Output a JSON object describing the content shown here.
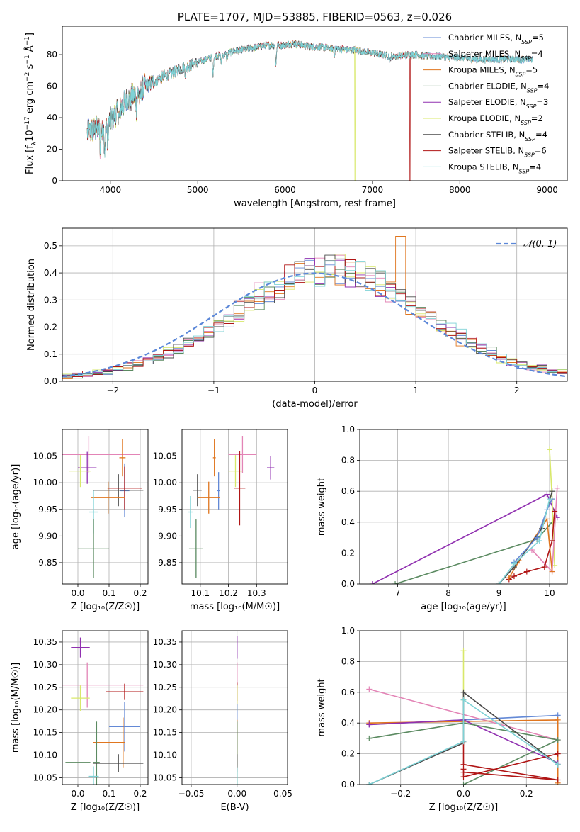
{
  "colors": {
    "Chabrier MILES": "#6389d6",
    "Salpeter MILES": "#e384b6",
    "Kroupa MILES": "#e0761f",
    "Chabrier ELODIE": "#5b8a61",
    "Salpeter ELODIE": "#9030b0",
    "Kroupa ELODIE": "#d8e86a",
    "Chabrier STELIB": "#4a4a4a",
    "Salpeter STELIB": "#b01515",
    "Kroupa STELIB": "#7ed2d6"
  },
  "chart_data": [
    {
      "type": "line",
      "title": "PLATE=1707, MJD=53885, FIBERID=0563, z=0.026",
      "xlabel": "wavelength [Angstrom, rest frame]",
      "ylabel": "Flux [f_λ 10⁻¹⁷ erg cm⁻² s⁻¹ Å⁻¹]",
      "xlim": [
        3450,
        9230
      ],
      "ylim": [
        0,
        98
      ],
      "xticks": [
        4000,
        5000,
        6000,
        7000,
        8000,
        9000
      ],
      "yticks": [
        0,
        20,
        40,
        60,
        80
      ],
      "legend_placement": "top-right",
      "legend": [
        {
          "model": "Chabrier MILES",
          "name": "Chabrier MILES, N",
          "sub": "SSP",
          "n": "=5"
        },
        {
          "model": "Salpeter MILES",
          "name": "Salpeter MILES, N",
          "sub": "SSP",
          "n": "=4"
        },
        {
          "model": "Kroupa MILES",
          "name": "Kroupa MILES, N",
          "sub": "SSP",
          "n": "=5"
        },
        {
          "model": "Chabrier ELODIE",
          "name": "Chabrier ELODIE, N",
          "sub": "SSP",
          "n": "=4"
        },
        {
          "model": "Salpeter ELODIE",
          "name": "Salpeter ELODIE, N",
          "sub": "SSP",
          "n": "=3"
        },
        {
          "model": "Kroupa ELODIE",
          "name": "Kroupa ELODIE, N",
          "sub": "SSP",
          "n": "=2"
        },
        {
          "model": "Chabrier STELIB",
          "name": "Chabrier STELIB, N",
          "sub": "SSP",
          "n": "=4"
        },
        {
          "model": "Salpeter STELIB",
          "name": "Salpeter STELIB, N",
          "sub": "SSP",
          "n": "=6"
        },
        {
          "model": "Kroupa STELIB",
          "name": "Kroupa STELIB, N",
          "sub": "SSP",
          "n": "=4"
        }
      ],
      "continuum": {
        "x": [
          3730,
          3800,
          3900,
          4000,
          4100,
          4200,
          4300,
          4400,
          4500,
          4600,
          4700,
          4800,
          4900,
          5000,
          5100,
          5200,
          5300,
          5400,
          5500,
          5600,
          5700,
          5800,
          5900,
          6000,
          6100,
          6200,
          6300,
          6400,
          6500,
          6600,
          6700,
          6800,
          6900,
          7000,
          7100,
          7200,
          7300,
          7400,
          7500,
          7600,
          7700,
          7800,
          7900,
          8000,
          8200,
          8400,
          8600,
          8800
        ],
        "y": [
          30,
          32,
          34,
          38,
          45,
          52,
          55,
          60,
          63,
          66,
          68,
          71,
          73,
          75,
          77,
          79,
          80,
          82,
          83,
          84,
          85,
          86,
          86,
          86,
          87,
          86,
          85,
          85,
          84,
          84,
          83,
          83,
          82,
          81,
          80,
          79,
          79,
          80,
          80,
          79,
          79,
          79,
          78,
          78,
          77,
          77,
          77,
          77
        ]
      },
      "drops": [
        {
          "model": "Kroupa ELODIE",
          "x": 6800
        },
        {
          "model": "Salpeter STELIB",
          "x": 7430
        }
      ]
    },
    {
      "type": "histogram",
      "xlabel": "(data-model)/error",
      "ylabel": "Normed distribution",
      "xlim": [
        -2.5,
        2.5
      ],
      "ylim": [
        0,
        0.565
      ],
      "xticks": [
        -2,
        -1,
        0,
        1,
        2
      ],
      "yticks": [
        0.0,
        0.1,
        0.2,
        0.3,
        0.4,
        0.5
      ],
      "legend": {
        "name": "𝒩(0, 1)",
        "placement": "top-right"
      },
      "bin_edges": [
        -2.5,
        2.5,
        50
      ],
      "envelope": [
        0.02,
        0.023,
        0.027,
        0.032,
        0.037,
        0.045,
        0.053,
        0.063,
        0.074,
        0.088,
        0.103,
        0.12,
        0.14,
        0.162,
        0.186,
        0.21,
        0.237,
        0.262,
        0.29,
        0.315,
        0.338,
        0.36,
        0.378,
        0.392,
        0.402,
        0.408,
        0.41,
        0.408,
        0.402,
        0.392,
        0.378,
        0.36,
        0.338,
        0.315,
        0.29,
        0.262,
        0.237,
        0.21,
        0.186,
        0.162,
        0.14,
        0.12,
        0.103,
        0.088,
        0.074,
        0.063,
        0.053,
        0.045,
        0.037,
        0.032
      ]
    },
    {
      "type": "errorbar",
      "xlabel": "Z [log₁₀(Z/Z☉)]",
      "ylabel": "age  [log₁₀(age/yr)]",
      "xlim": [
        -0.05,
        0.225
      ],
      "ylim": [
        9.81,
        10.1
      ],
      "xticks": [
        0.0,
        0.1,
        0.2
      ],
      "yticks": [
        9.85,
        9.9,
        9.95,
        10.0,
        10.05
      ],
      "points": [
        {
          "model": "Salpeter MILES",
          "x": 0.035,
          "y": 10.053,
          "xerr": 0.165,
          "yerr": 0.035
        },
        {
          "model": "Salpeter ELODIE",
          "x": 0.03,
          "y": 10.028,
          "xerr": 0.03,
          "yerr": 0.03
        },
        {
          "model": "Kroupa ELODIE",
          "x": 0.008,
          "y": 10.022,
          "xerr": 0.035,
          "yerr": 0.03
        },
        {
          "model": "Kroupa MILES",
          "x": 0.143,
          "y": 10.047,
          "xerr": 0.01,
          "yerr": 0.035
        },
        {
          "model": "Chabrier MILES",
          "x": 0.15,
          "y": 9.985,
          "xerr": 0.015,
          "yerr": 0.05
        },
        {
          "model": "Chabrier STELIB",
          "x": 0.13,
          "y": 9.986,
          "xerr": 0.08,
          "yerr": 0.03
        },
        {
          "model": "Salpeter STELIB",
          "x": 0.15,
          "y": 9.99,
          "xerr": 0.055,
          "yerr": 0.04
        },
        {
          "model": "Kroupa MILES",
          "x": 0.097,
          "y": 9.972,
          "xerr": 0.055,
          "yerr": 0.03
        },
        {
          "model": "Kroupa STELIB",
          "x": 0.05,
          "y": 9.945,
          "xerr": 0.015,
          "yerr": 0.04
        },
        {
          "model": "Chabrier ELODIE",
          "x": 0.05,
          "y": 9.876,
          "xerr": 0.05,
          "yerr": 0.055
        }
      ]
    },
    {
      "type": "errorbar",
      "xlabel": "mass [log₁₀(M/M☉)]",
      "xlim": [
        10.035,
        10.41
      ],
      "ylim": [
        9.81,
        10.1
      ],
      "xticks": [
        10.1,
        10.2,
        10.3
      ],
      "yticks": [
        9.85,
        9.9,
        9.95,
        10.0,
        10.05
      ],
      "points": [
        {
          "model": "Salpeter MILES",
          "x": 10.25,
          "y": 10.053,
          "xerr": 0.05,
          "yerr": 0.035
        },
        {
          "model": "Salpeter ELODIE",
          "x": 10.35,
          "y": 10.028,
          "xerr": 0.013,
          "yerr": 0.022
        },
        {
          "model": "Kroupa ELODIE",
          "x": 10.225,
          "y": 10.022,
          "xerr": 0.025,
          "yerr": 0.03
        },
        {
          "model": "Kroupa MILES",
          "x": 10.15,
          "y": 10.047,
          "xerr": 0.005,
          "yerr": 0.035
        },
        {
          "model": "Chabrier MILES",
          "x": 10.165,
          "y": 9.985,
          "xerr": 0.005,
          "yerr": 0.035
        },
        {
          "model": "Salpeter STELIB",
          "x": 10.24,
          "y": 9.99,
          "xerr": 0.02,
          "yerr": 0.07
        },
        {
          "model": "Chabrier STELIB",
          "x": 10.09,
          "y": 9.986,
          "xerr": 0.015,
          "yerr": 0.03
        },
        {
          "model": "Kroupa MILES",
          "x": 10.13,
          "y": 9.972,
          "xerr": 0.04,
          "yerr": 0.03
        },
        {
          "model": "Kroupa STELIB",
          "x": 10.065,
          "y": 9.945,
          "xerr": 0.01,
          "yerr": 0.03
        },
        {
          "model": "Chabrier ELODIE",
          "x": 10.085,
          "y": 9.876,
          "xerr": 0.025,
          "yerr": 0.055
        }
      ]
    },
    {
      "type": "line",
      "xlabel": "age  [log₁₀(age/yr)]",
      "ylabel": "mass weight",
      "xlim": [
        6.25,
        10.35
      ],
      "ylim": [
        0,
        1.0
      ],
      "xticks": [
        7,
        8,
        9,
        10
      ],
      "yticks": [
        0.0,
        0.2,
        0.4,
        0.6,
        0.8,
        1.0
      ],
      "series": [
        {
          "model": "Salpeter ELODIE",
          "x": [
            6.5,
            9.95,
            10.15
          ],
          "y": [
            0.0,
            0.58,
            0.43
          ]
        },
        {
          "model": "Chabrier ELODIE",
          "x": [
            6.95,
            9.75,
            10.05
          ],
          "y": [
            0.0,
            0.29,
            0.4
          ]
        },
        {
          "model": "Kroupa ELODIE",
          "x": [
            10.0,
            10.05,
            10.1
          ],
          "y": [
            0.87,
            0.55,
            0.12
          ]
        },
        {
          "model": "Salpeter MILES",
          "x": [
            9.65,
            10.05,
            10.15
          ],
          "y": [
            0.22,
            0.08,
            0.62
          ]
        },
        {
          "model": "Salpeter STELIB",
          "x": [
            9.2,
            9.3,
            9.55,
            9.9,
            10.05,
            10.1
          ],
          "y": [
            0.03,
            0.05,
            0.08,
            0.11,
            0.28,
            0.47
          ]
        },
        {
          "model": "Kroupa MILES",
          "x": [
            9.2,
            9.4,
            9.95,
            10.05
          ],
          "y": [
            0.04,
            0.15,
            0.42,
            0.08
          ]
        },
        {
          "model": "Chabrier STELIB",
          "x": [
            9.0,
            9.3,
            9.85,
            10.05
          ],
          "y": [
            0.0,
            0.11,
            0.36,
            0.6
          ]
        },
        {
          "model": "Chabrier MILES",
          "x": [
            9.3,
            9.75,
            9.95,
            10.05
          ],
          "y": [
            0.14,
            0.3,
            0.48,
            0.55
          ]
        },
        {
          "model": "Kroupa STELIB",
          "x": [
            9.0,
            9.3,
            9.8,
            10.0
          ],
          "y": [
            0.0,
            0.13,
            0.28,
            0.55
          ]
        }
      ]
    },
    {
      "type": "errorbar",
      "xlabel": "Z [log₁₀(Z/Z☉)]",
      "ylabel": "mass [log₁₀(M/M☉)]",
      "xlim": [
        -0.05,
        0.225
      ],
      "ylim": [
        10.035,
        10.375
      ],
      "xticks": [
        0.0,
        0.1,
        0.2
      ],
      "yticks": [
        10.05,
        10.1,
        10.15,
        10.2,
        10.25,
        10.3,
        10.35
      ],
      "points": [
        {
          "model": "Salpeter ELODIE",
          "x": 0.008,
          "y": 10.338,
          "xerr": 0.03,
          "yerr": 0.022
        },
        {
          "model": "Salpeter MILES",
          "x": 0.03,
          "y": 10.255,
          "xerr": 0.18,
          "yerr": 0.05
        },
        {
          "model": "Salpeter STELIB",
          "x": 0.15,
          "y": 10.24,
          "xerr": 0.06,
          "yerr": 0.018
        },
        {
          "model": "Kroupa ELODIE",
          "x": 0.008,
          "y": 10.226,
          "xerr": 0.03,
          "yerr": 0.028
        },
        {
          "model": "Chabrier MILES",
          "x": 0.15,
          "y": 10.163,
          "xerr": 0.05,
          "yerr": 0.055
        },
        {
          "model": "Kroupa MILES",
          "x": 0.1,
          "y": 10.128,
          "xerr": 0.05,
          "yerr": 0.0
        },
        {
          "model": "Kroupa MILES",
          "x": 0.145,
          "y": 10.128,
          "xerr": 0.0,
          "yerr": 0.055
        },
        {
          "model": "Chabrier ELODIE",
          "x": 0.06,
          "y": 10.084,
          "xerr": 0.01,
          "yerr": 0.09
        },
        {
          "model": "Chabrier STELIB",
          "x": 0.13,
          "y": 10.082,
          "xerr": 0.08,
          "yerr": 0.02
        },
        {
          "model": "Chabrier ELODIE",
          "x": 0.0,
          "y": 10.084,
          "xerr": 0.04,
          "yerr": 0.0
        },
        {
          "model": "Kroupa STELIB",
          "x": 0.05,
          "y": 10.053,
          "xerr": 0.017,
          "yerr": 0.022
        }
      ]
    },
    {
      "type": "errorbar",
      "xlabel": "E(B-V)",
      "xlim": [
        -0.06,
        0.055
      ],
      "ylim": [
        10.035,
        10.375
      ],
      "xticks": [
        -0.05,
        0.0,
        0.05
      ],
      "xticklabels": [
        "−0.05",
        "0.00",
        "0.05"
      ],
      "yticks": [
        10.05,
        10.1,
        10.15,
        10.2,
        10.25,
        10.3,
        10.35
      ],
      "points": [
        {
          "model": "Salpeter ELODIE",
          "x": 0.0,
          "y": 10.338,
          "xerr": 0.0,
          "yerr": 0.025
        },
        {
          "model": "Salpeter MILES",
          "x": 0.0,
          "y": 10.255,
          "xerr": 0.0,
          "yerr": 0.05
        },
        {
          "model": "Salpeter STELIB",
          "x": 0.0,
          "y": 10.24,
          "xerr": 0.0,
          "yerr": 0.02
        },
        {
          "model": "Kroupa ELODIE",
          "x": 0.0,
          "y": 10.226,
          "xerr": 0.0,
          "yerr": 0.028
        },
        {
          "model": "Chabrier MILES",
          "x": 0.0,
          "y": 10.163,
          "xerr": 0.0,
          "yerr": 0.05
        },
        {
          "model": "Kroupa MILES",
          "x": 0.0,
          "y": 10.128,
          "xerr": 0.0,
          "yerr": 0.05
        },
        {
          "model": "Chabrier ELODIE",
          "x": 0.0,
          "y": 10.084,
          "xerr": 0.0,
          "yerr": 0.09
        },
        {
          "model": "Chabrier STELIB",
          "x": 0.0,
          "y": 10.082,
          "xerr": 0.0,
          "yerr": 0.02
        },
        {
          "model": "Kroupa STELIB",
          "x": 0.0,
          "y": 10.053,
          "xerr": 0.0,
          "yerr": 0.02
        }
      ]
    },
    {
      "type": "line",
      "xlabel": "Z [log₁₀(Z/Z☉)]",
      "ylabel": "mass weight",
      "xlim": [
        -0.33,
        0.33
      ],
      "ylim": [
        0,
        1.0
      ],
      "xticks": [
        -0.2,
        0.0,
        0.2
      ],
      "xticklabels": [
        "−0.2",
        "0.0",
        "0.2"
      ],
      "yticks": [
        0.0,
        0.2,
        0.4,
        0.6,
        0.8,
        1.0
      ],
      "series": [
        {
          "model": "Salpeter MILES",
          "x": [
            -0.3,
            0.3
          ],
          "y": [
            0.62,
            0.29
          ]
        },
        {
          "model": "Chabrier MILES",
          "x": [
            -0.3,
            0.3
          ],
          "y": [
            0.39,
            0.45
          ]
        },
        {
          "model": "Kroupa MILES",
          "x": [
            -0.3,
            0.3,
            0.3
          ],
          "y": [
            0.4,
            0.42,
            0.01
          ]
        },
        {
          "model": "Salpeter ELODIE",
          "x": [
            -0.3,
            0.0,
            0.3
          ],
          "y": [
            0.39,
            0.42,
            0.14
          ]
        },
        {
          "model": "Chabrier ELODIE",
          "x": [
            -0.3,
            0.0,
            0.3,
            0.0
          ],
          "y": [
            0.3,
            0.4,
            0.29,
            0.0
          ]
        },
        {
          "model": "Kroupa ELODIE",
          "x": [
            0.0,
            0.0
          ],
          "y": [
            0.87,
            0.55
          ]
        },
        {
          "model": "Chabrier STELIB",
          "x": [
            -0.3,
            0.0,
            0.0,
            0.3
          ],
          "y": [
            0.0,
            0.27,
            0.6,
            0.13
          ]
        },
        {
          "model": "Salpeter STELIB",
          "x": [
            0.0,
            0.0,
            0.3,
            0.0,
            0.0,
            0.0,
            0.3
          ],
          "y": [
            0.28,
            0.13,
            0.03,
            0.08,
            0.1,
            0.05,
            0.2
          ]
        },
        {
          "model": "Kroupa STELIB",
          "x": [
            -0.3,
            0.0,
            0.0,
            0.3
          ],
          "y": [
            0.0,
            0.28,
            0.55,
            0.13
          ]
        }
      ]
    }
  ]
}
